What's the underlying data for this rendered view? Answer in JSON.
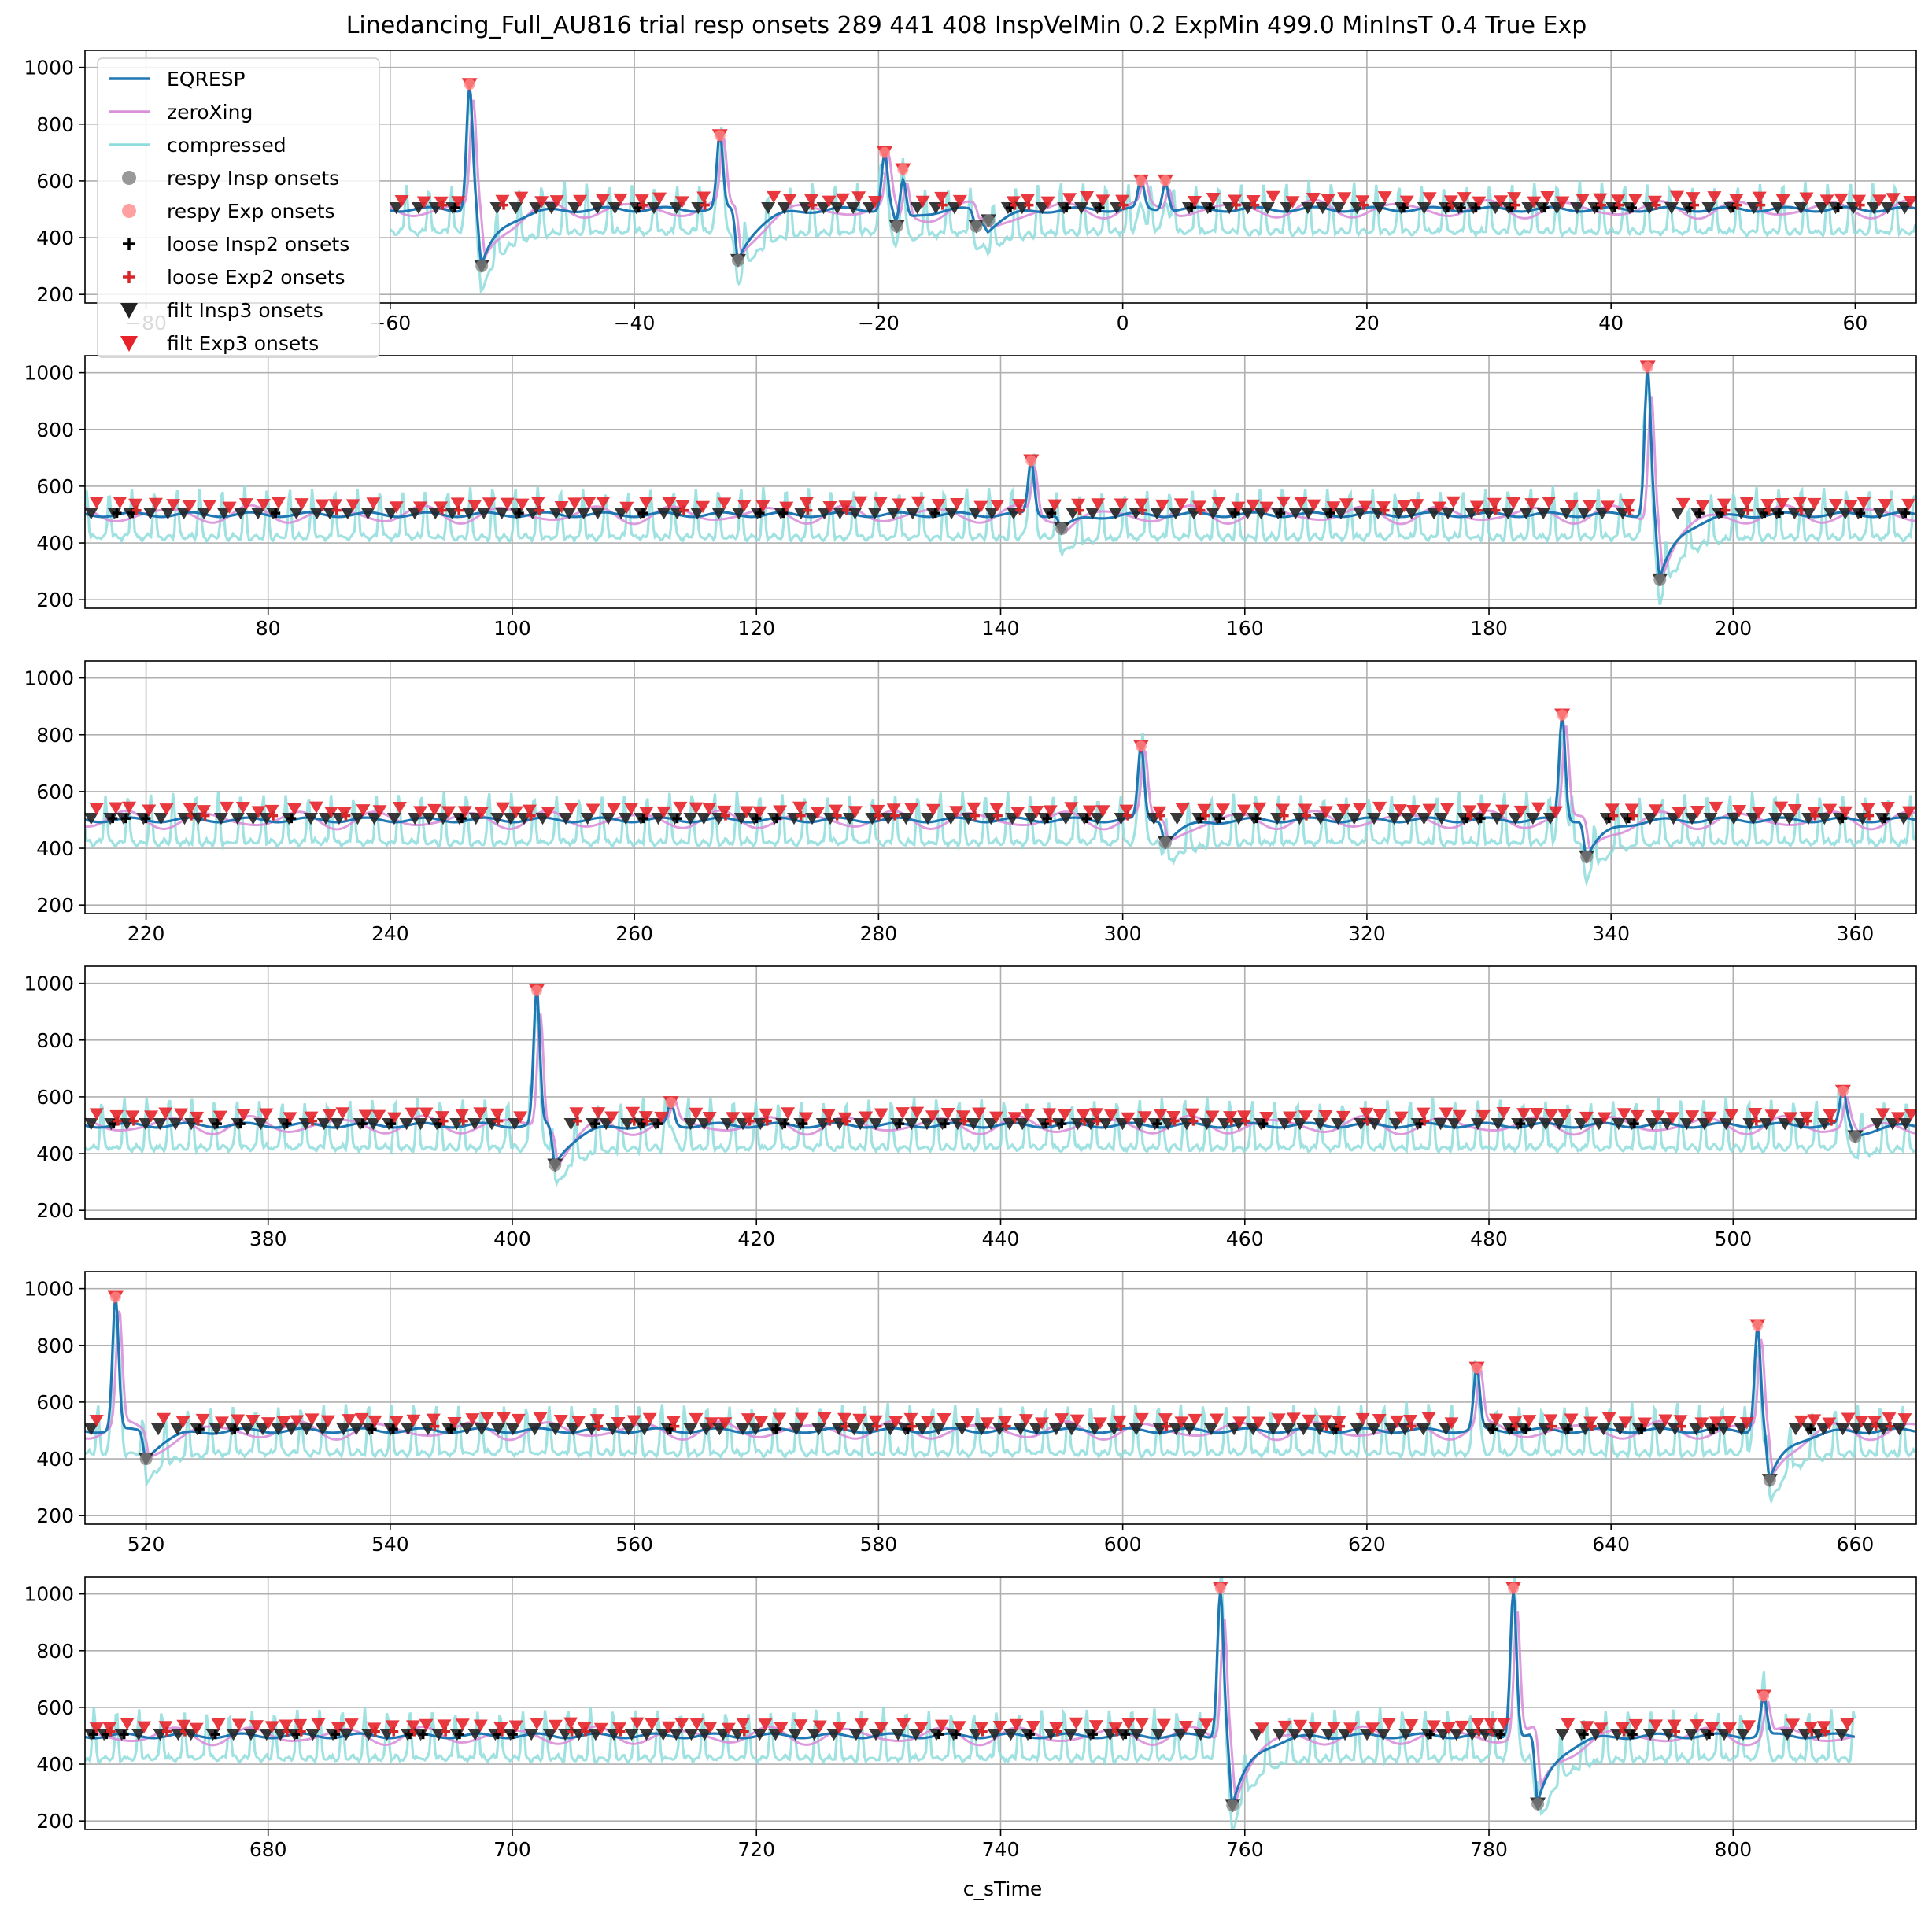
{
  "chart_data": {
    "type": "line",
    "title": "Linedancing_Full_AU816 trial resp onsets 289 441 408 InspVelMin 0.2 ExpMin 499.0 MinInsT 0.4  True Exp",
    "xlabel": "c_sTime",
    "ylabel": "",
    "grid": true,
    "legend": {
      "placement": "upper-left",
      "entries": [
        {
          "name": "EQRESP",
          "marker": "line",
          "color": "#1f77b4"
        },
        {
          "name": "zeroXing",
          "marker": "line",
          "color": "#d98fd9"
        },
        {
          "name": "compressed",
          "marker": "line",
          "color": "#8fdcdc"
        },
        {
          "name": "respy Insp onsets",
          "marker": "circle",
          "color": "#808080"
        },
        {
          "name": "respy Exp onsets",
          "marker": "circle",
          "color": "#ff8a8a"
        },
        {
          "name": "loose Insp2 onsets",
          "marker": "plus",
          "color": "#000000"
        },
        {
          "name": "loose Exp2 onsets",
          "marker": "plus",
          "color": "#d62728"
        },
        {
          "name": "filt Insp3 onsets",
          "marker": "triangle-down",
          "color": "#222222"
        },
        {
          "name": "filt Exp3 onsets",
          "marker": "triangle-down",
          "color": "#e8222a"
        }
      ]
    },
    "panels": [
      {
        "xlim": [
          -85,
          65
        ],
        "ylim": [
          170,
          1060
        ],
        "xticks": [
          -80,
          -60,
          -40,
          -20,
          0,
          20,
          40,
          60
        ],
        "xtick_labels": [
          "−80",
          "−60",
          "−40",
          "−20",
          "0",
          "20",
          "40",
          "60"
        ],
        "yticks": [
          200,
          400,
          600,
          800,
          1000
        ],
        "x_start": -60,
        "spikes": [
          [
            -53.5,
            940
          ],
          [
            -33,
            760
          ],
          [
            -19.5,
            700
          ],
          [
            -18,
            640
          ],
          [
            1.5,
            600
          ],
          [
            3.5,
            600
          ]
        ],
        "dips": [
          [
            -52.5,
            300
          ],
          [
            -31.5,
            320
          ],
          [
            -18.5,
            440
          ],
          [
            -12,
            440
          ],
          [
            -11,
            460
          ]
        ]
      },
      {
        "xlim": [
          65,
          215
        ],
        "ylim": [
          170,
          1060
        ],
        "xticks": [
          80,
          100,
          120,
          140,
          160,
          180,
          200
        ],
        "xtick_labels": [
          "80",
          "100",
          "120",
          "140",
          "160",
          "180",
          "200"
        ],
        "yticks": [
          200,
          400,
          600,
          800,
          1000
        ],
        "x_start": 65,
        "spikes": [
          [
            142.5,
            690
          ],
          [
            193,
            1020
          ]
        ],
        "dips": [
          [
            145,
            450
          ],
          [
            194,
            270
          ]
        ]
      },
      {
        "xlim": [
          215,
          365
        ],
        "ylim": [
          170,
          1060
        ],
        "xticks": [
          220,
          240,
          260,
          280,
          300,
          320,
          340,
          360
        ],
        "xtick_labels": [
          "220",
          "240",
          "260",
          "280",
          "300",
          "320",
          "340",
          "360"
        ],
        "yticks": [
          200,
          400,
          600,
          800,
          1000
        ],
        "x_start": 215,
        "spikes": [
          [
            301.5,
            760
          ],
          [
            336,
            870
          ]
        ],
        "dips": [
          [
            303.5,
            420
          ],
          [
            338,
            370
          ]
        ]
      },
      {
        "xlim": [
          365,
          515
        ],
        "ylim": [
          170,
          1060
        ],
        "xticks": [
          380,
          400,
          420,
          440,
          460,
          480,
          500
        ],
        "xtick_labels": [
          "380",
          "400",
          "420",
          "440",
          "460",
          "480",
          "500"
        ],
        "yticks": [
          200,
          400,
          600,
          800,
          1000
        ],
        "x_start": 365,
        "spikes": [
          [
            402,
            975
          ],
          [
            413,
            580
          ],
          [
            509,
            620
          ]
        ],
        "dips": [
          [
            403.5,
            360
          ],
          [
            510,
            460
          ]
        ]
      },
      {
        "xlim": [
          515,
          665
        ],
        "ylim": [
          170,
          1060
        ],
        "xticks": [
          520,
          540,
          560,
          580,
          600,
          620,
          640,
          660
        ],
        "xtick_labels": [
          "520",
          "540",
          "560",
          "580",
          "600",
          "620",
          "640",
          "660"
        ],
        "yticks": [
          200,
          400,
          600,
          800,
          1000
        ],
        "x_start": 515,
        "spikes": [
          [
            517.5,
            970
          ],
          [
            629,
            720
          ],
          [
            652,
            870
          ]
        ],
        "dips": [
          [
            520,
            400
          ],
          [
            653,
            325
          ]
        ]
      },
      {
        "xlim": [
          665,
          815
        ],
        "ylim": [
          170,
          1060
        ],
        "xticks": [
          680,
          700,
          720,
          740,
          760,
          780,
          800
        ],
        "xtick_labels": [
          "680",
          "700",
          "720",
          "740",
          "760",
          "780",
          "800"
        ],
        "yticks": [
          200,
          400,
          600,
          800,
          1000
        ],
        "x_start": 665,
        "x_end": 810,
        "spikes": [
          [
            758,
            1020
          ],
          [
            782,
            1020
          ],
          [
            802.5,
            640
          ]
        ],
        "dips": [
          [
            759,
            255
          ],
          [
            784,
            260
          ]
        ]
      }
    ]
  }
}
